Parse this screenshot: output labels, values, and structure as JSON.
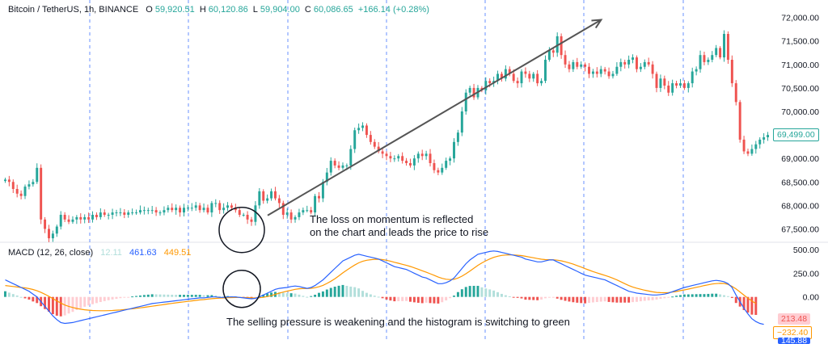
{
  "header": {
    "symbol": "Bitcoin / TetherUS, 1h, BINANCE",
    "o_label": "O",
    "o_value": "59,920.51",
    "h_label": "H",
    "h_value": "60,120.86",
    "l_label": "L",
    "l_value": "59,904.00",
    "c_label": "C",
    "c_value": "60,086.65",
    "change": "+166.14 (+0.28%)"
  },
  "macd_header": {
    "label": "MACD (12, 26, close)",
    "hist_value": "12.11",
    "macd_value": "461.63",
    "signal_value": "449.51"
  },
  "annotations": {
    "upper_line1": "The loss on momentum is reflected",
    "upper_line2": "on the chart and leads the price to rise",
    "lower": "The selling pressure is weakening and the histogram is switching to green"
  },
  "price_tags": {
    "last_price": "69,499.00",
    "macd_tag1": "213.48",
    "macd_tag2": "−232.40",
    "macd_tag3": "145.88"
  },
  "colors": {
    "up": "#26a69a",
    "down": "#ef5350",
    "macd_line": "#2962ff",
    "signal_line": "#ff9800",
    "hist_up_strong": "#26a69a",
    "hist_up_weak": "#b2dfdb",
    "hist_down_strong": "#ef5350",
    "hist_down_weak": "#ffcdd2",
    "vline": "#2962ff"
  },
  "chart_data": [
    {
      "type": "candlestick",
      "title": "Bitcoin / TetherUS, 1h, BINANCE",
      "y_ticks": [
        "72,000.00",
        "71,500.00",
        "71,000.00",
        "70,500.00",
        "70,000.00",
        "69,500.00",
        "69,000.00",
        "68,500.00",
        "68,000.00",
        "67,500.00"
      ],
      "y_tick_values": [
        72000,
        71500,
        71000,
        70500,
        70000,
        69500,
        69000,
        68500,
        68000,
        67500
      ],
      "ylim": [
        67250,
        72200
      ],
      "closes": [
        68550,
        68500,
        68350,
        68250,
        68200,
        68400,
        68450,
        68500,
        68800,
        67700,
        67500,
        67300,
        67400,
        67550,
        67800,
        67700,
        67650,
        67700,
        67750,
        67700,
        67750,
        67700,
        67800,
        67750,
        67850,
        67800,
        67800,
        67850,
        67850,
        67850,
        67800,
        67850,
        67850,
        67850,
        67900,
        67900,
        67900,
        67900,
        67850,
        67850,
        67900,
        67950,
        67900,
        67950,
        67850,
        67950,
        67950,
        67950,
        68000,
        67900,
        67950,
        67850,
        68050,
        68050,
        67900,
        67950,
        68000,
        67950,
        67900,
        67800,
        67800,
        67700,
        67650,
        68000,
        68300,
        68100,
        68150,
        68300,
        68150,
        68050,
        67800,
        67850,
        67700,
        67750,
        67850,
        67900,
        67900,
        67850,
        68200,
        68150,
        68500,
        68700,
        68950,
        68850,
        68800,
        68850,
        68850,
        69200,
        69600,
        69650,
        69700,
        69500,
        69350,
        69250,
        69150,
        69100,
        69050,
        69000,
        69000,
        69050,
        68950,
        68900,
        68850,
        69000,
        69100,
        69050,
        69100,
        68900,
        68750,
        68700,
        68800,
        68950,
        69000,
        69350,
        69550,
        70000,
        70400,
        70500,
        70300,
        70500,
        70450,
        70650,
        70600,
        70650,
        70800,
        70700,
        70900,
        70800,
        70650,
        70600,
        70850,
        70800,
        70700,
        70800,
        70600,
        70650,
        71100,
        71300,
        71250,
        71600,
        71200,
        71000,
        70900,
        71050,
        70950,
        71000,
        70950,
        70800,
        70850,
        70800,
        70900,
        70850,
        70750,
        70800,
        70950,
        71050,
        71000,
        71100,
        71150,
        70900,
        70950,
        71050,
        71000,
        70800,
        70500,
        70700,
        70550,
        70400,
        70600,
        70550,
        70600,
        70500,
        70600,
        70850,
        70900,
        71200,
        71050,
        71100,
        71200,
        71350,
        71150,
        71650,
        71100,
        70600,
        70200,
        69400,
        69150,
        69100,
        69200,
        69300,
        69400,
        69450,
        69500
      ],
      "annotation_arrow": {
        "from_index": 62,
        "to_index": 148
      }
    },
    {
      "type": "line+bar",
      "title": "MACD (12, 26, close)",
      "y_ticks": [
        "500.00",
        "250.00",
        "0.00"
      ],
      "y_tick_values": [
        500,
        250,
        0
      ],
      "ylim": [
        -480,
        560
      ],
      "series": [
        {
          "name": "MACD",
          "values": [
            180,
            160,
            140,
            120,
            100,
            80,
            60,
            30,
            0,
            -50,
            -100,
            -150,
            -200,
            -240,
            -270,
            -280,
            -275,
            -270,
            -260,
            -250,
            -240,
            -230,
            -220,
            -210,
            -200,
            -190,
            -180,
            -170,
            -160,
            -150,
            -140,
            -130,
            -120,
            -110,
            -100,
            -90,
            -80,
            -70,
            -65,
            -60,
            -55,
            -50,
            -45,
            -40,
            -35,
            -30,
            -25,
            -20,
            -15,
            -10,
            -10,
            -5,
            0,
            0,
            -5,
            -5,
            0,
            0,
            0,
            -5,
            -10,
            -15,
            -20,
            -15,
            0,
            20,
            40,
            60,
            80,
            90,
            95,
            100,
            110,
            115,
            110,
            100,
            90,
            100,
            120,
            150,
            180,
            220,
            260,
            300,
            340,
            380,
            400,
            420,
            440,
            450,
            440,
            430,
            420,
            410,
            400,
            380,
            360,
            340,
            320,
            310,
            300,
            290,
            270,
            250,
            230,
            210,
            200,
            180,
            160,
            140,
            140,
            150,
            170,
            200,
            250,
            300,
            350,
            390,
            420,
            450,
            460,
            470,
            480,
            485,
            480,
            470,
            460,
            450,
            440,
            430,
            420,
            400,
            390,
            380,
            370,
            370,
            380,
            390,
            390,
            370,
            350,
            330,
            310,
            290,
            270,
            250,
            230,
            220,
            210,
            200,
            190,
            180,
            160,
            140,
            120,
            100,
            80,
            60,
            50,
            40,
            35,
            30,
            25,
            20,
            20,
            25,
            30,
            40,
            55,
            70,
            85,
            100,
            110,
            120,
            130,
            140,
            150,
            160,
            170,
            175,
            170,
            160,
            140,
            100,
            20,
            -50,
            -120,
            -180,
            -230,
            -260,
            -280,
            -290
          ]
        },
        {
          "name": "Signal",
          "values": [
            120,
            115,
            110,
            105,
            100,
            95,
            88,
            78,
            65,
            48,
            28,
            6,
            -18,
            -42,
            -65,
            -85,
            -100,
            -112,
            -122,
            -130,
            -136,
            -140,
            -143,
            -145,
            -146,
            -146,
            -145,
            -143,
            -140,
            -137,
            -133,
            -129,
            -125,
            -120,
            -115,
            -110,
            -104,
            -98,
            -92,
            -86,
            -80,
            -74,
            -68,
            -62,
            -57,
            -52,
            -47,
            -42,
            -37,
            -32,
            -28,
            -23,
            -19,
            -15,
            -13,
            -11,
            -9,
            -7,
            -6,
            -6,
            -7,
            -8,
            -10,
            -11,
            -9,
            -4,
            4,
            14,
            27,
            40,
            51,
            61,
            71,
            80,
            86,
            89,
            89,
            91,
            97,
            107,
            122,
            142,
            165,
            192,
            222,
            254,
            283,
            311,
            337,
            360,
            376,
            387,
            393,
            397,
            398,
            394,
            387,
            378,
            366,
            355,
            344,
            333,
            321,
            307,
            292,
            276,
            261,
            245,
            228,
            210,
            196,
            187,
            183,
            186,
            199,
            219,
            245,
            274,
            303,
            333,
            359,
            381,
            401,
            418,
            430,
            438,
            442,
            444,
            443,
            440,
            436,
            429,
            421,
            413,
            405,
            398,
            394,
            393,
            392,
            388,
            381,
            371,
            359,
            346,
            331,
            315,
            298,
            283,
            268,
            254,
            240,
            227,
            213,
            197,
            180,
            160,
            140,
            120,
            105,
            92,
            81,
            71,
            62,
            54,
            48,
            45,
            44,
            46,
            51,
            57,
            66,
            74,
            83,
            92,
            101,
            110,
            120,
            128,
            136,
            141,
            143,
            142,
            132,
            111,
            84,
            52,
            19,
            -14,
            -43,
            -70
          ]
        }
      ]
    }
  ]
}
